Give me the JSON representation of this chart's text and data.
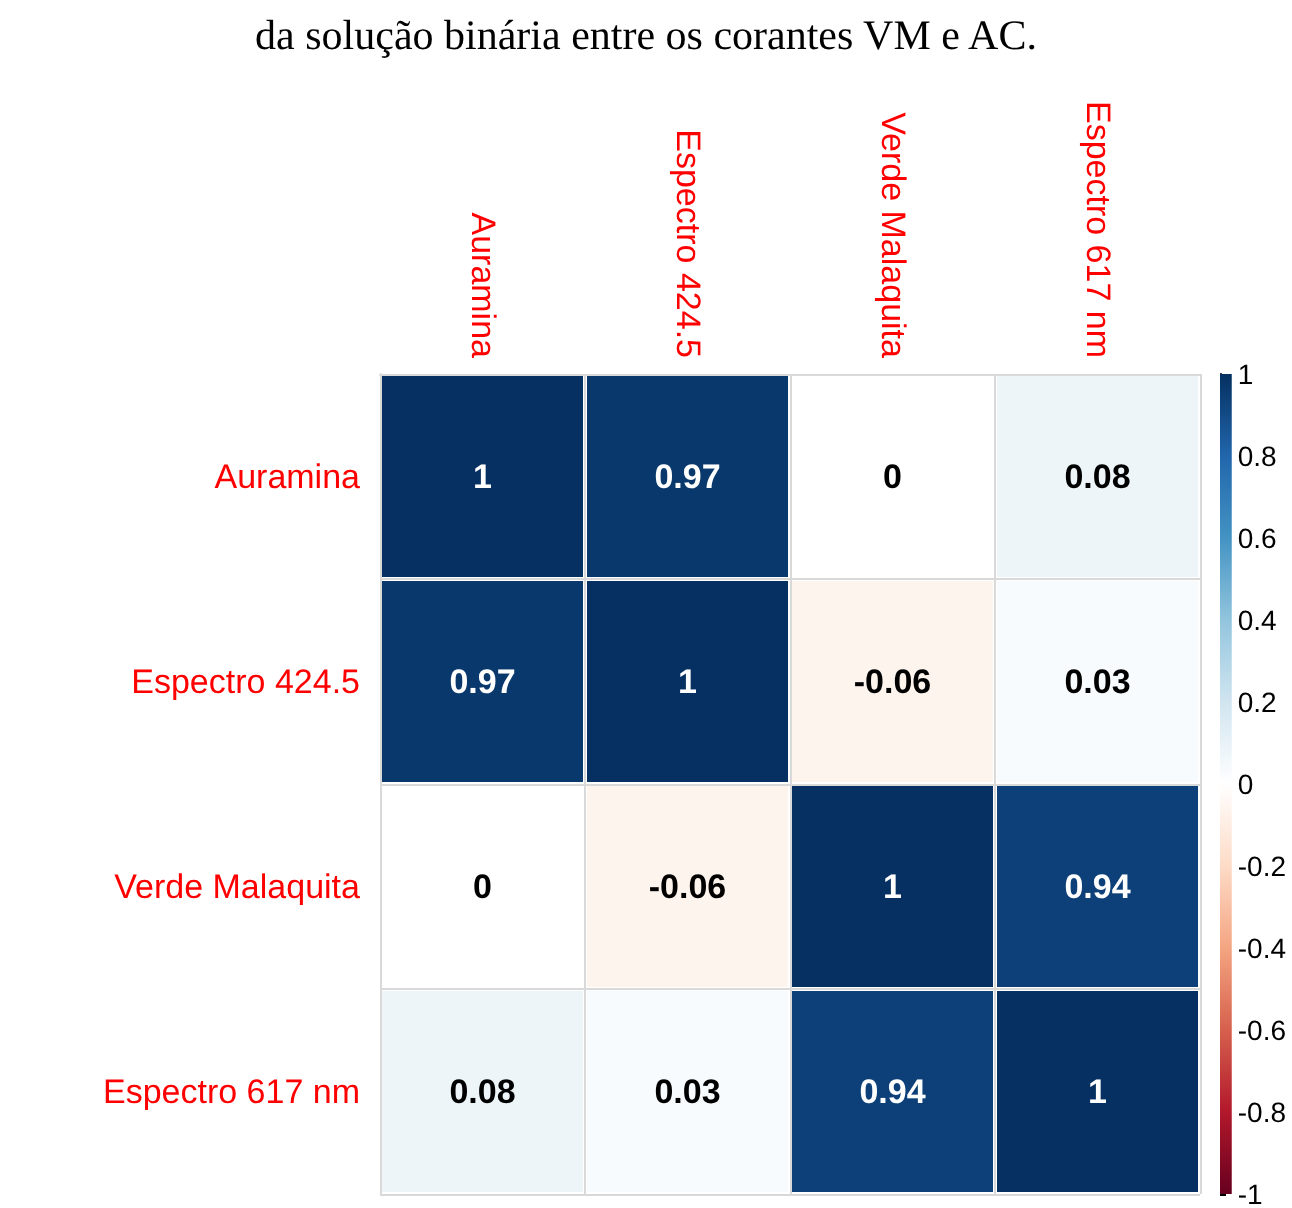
{
  "chart_data": {
    "type": "heatmap",
    "title": "da solução binária entre os corantes VM e AC.",
    "categories": [
      "Auramina",
      "Espectro 424.5",
      "Verde Malaquita",
      "Espectro 617 nm"
    ],
    "y_categories": [
      "Auramina",
      "Espectro 424.5",
      "Verde Malaquita",
      "Espectro 617 nm"
    ],
    "cells": [
      [
        1,
        0.97,
        0,
        0.08
      ],
      [
        0.97,
        1,
        -0.06,
        0.03
      ],
      [
        0,
        -0.06,
        1,
        0.94
      ],
      [
        0.08,
        0.03,
        0.94,
        1
      ]
    ],
    "data_labels": true,
    "clim": [
      -1,
      1
    ],
    "cticks": [
      -1,
      -0.8,
      -0.6,
      -0.4,
      -0.2,
      0,
      0.2,
      0.4,
      0.6,
      0.8,
      1
    ]
  }
}
